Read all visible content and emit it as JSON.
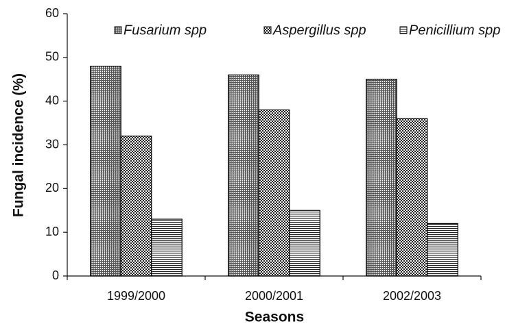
{
  "chart_data": {
    "type": "bar",
    "x_label": "Seasons",
    "y_label": "Fungal incidence (%)",
    "categories": [
      "1999/2000",
      "2000/2001",
      "2002/2003"
    ],
    "series": [
      {
        "name": "Fusarium spp",
        "color": "#000000",
        "pattern": "dots",
        "values": [
          48,
          46,
          45
        ]
      },
      {
        "name": "Aspergillus spp",
        "color": "#000000",
        "pattern": "checks",
        "values": [
          32,
          38,
          36
        ]
      },
      {
        "name": "Penicillium spp",
        "color": "#000000",
        "pattern": "hlines",
        "values": [
          13,
          15,
          12
        ]
      }
    ],
    "ylim": [
      0,
      60
    ],
    "yticks": [
      0,
      10,
      20,
      30,
      40,
      50,
      60
    ],
    "grid": false,
    "legend": "top"
  }
}
